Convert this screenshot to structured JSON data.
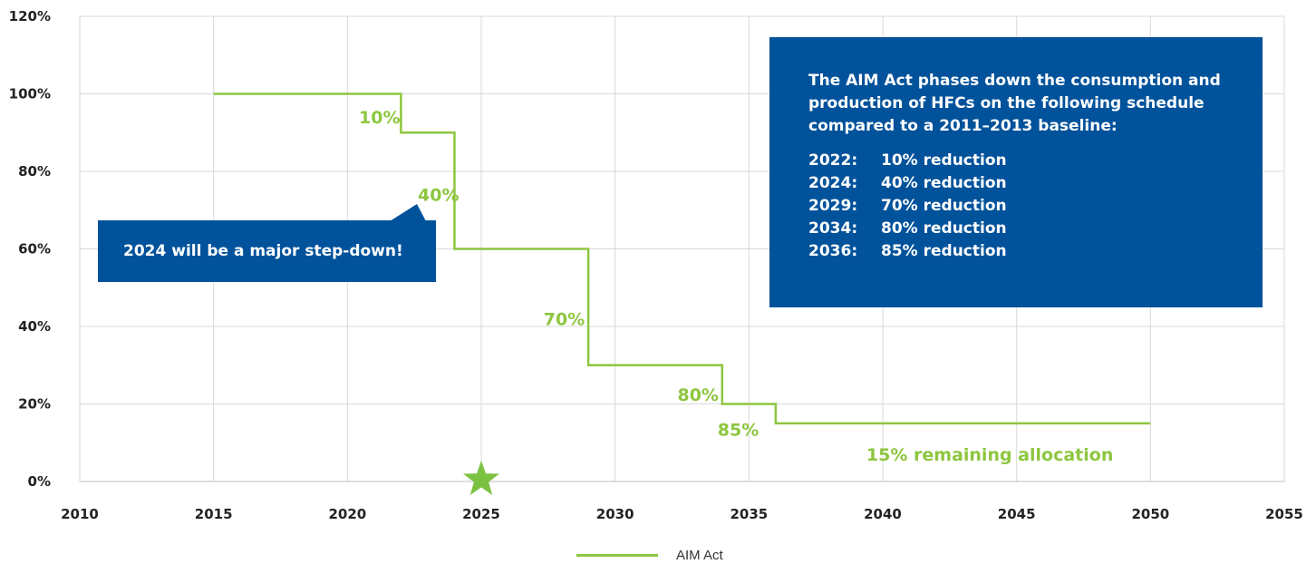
{
  "colors": {
    "series": "#8dc63f",
    "box": "#00529b",
    "grid": "#d9d9d9",
    "star": "#7cc242"
  },
  "info_box": {
    "intro": "The AIM Act phases down the consumption and production of HFCs on the following schedule compared to a 2011–2013 baseline:",
    "schedule": [
      {
        "year": "2022:",
        "text": "10% reduction"
      },
      {
        "year": "2024:",
        "text": "40% reduction"
      },
      {
        "year": "2029:",
        "text": "70% reduction"
      },
      {
        "year": "2034:",
        "text": "80% reduction"
      },
      {
        "year": "2036:",
        "text": "85% reduction"
      }
    ]
  },
  "callout": {
    "text": "2024 will be a major step-down!"
  },
  "chart_data": {
    "type": "line",
    "line_shape": "step",
    "title": "",
    "xlabel": "",
    "ylabel": "",
    "xlim": [
      2010,
      2055
    ],
    "ylim": [
      0,
      120
    ],
    "x_ticks": [
      2010,
      2015,
      2020,
      2025,
      2030,
      2035,
      2040,
      2045,
      2050,
      2055
    ],
    "y_ticks": [
      0,
      20,
      40,
      60,
      80,
      100,
      120
    ],
    "y_tick_labels": [
      "0%",
      "20%",
      "40%",
      "60%",
      "80%",
      "100%",
      "120%"
    ],
    "grid": true,
    "legend_position": "bottom",
    "series": [
      {
        "name": "AIM Act",
        "x": [
          2015,
          2022,
          2024,
          2029,
          2034,
          2036,
          2050
        ],
        "y": [
          100,
          90,
          60,
          30,
          20,
          15,
          15
        ]
      }
    ],
    "step_labels": [
      {
        "text": "10%",
        "x": 2021.2,
        "y": 94
      },
      {
        "text": "40%",
        "x": 2023.4,
        "y": 74
      },
      {
        "text": "70%",
        "x": 2028.1,
        "y": 42
      },
      {
        "text": "80%",
        "x": 2033.1,
        "y": 22.5
      },
      {
        "text": "85%",
        "x": 2034.6,
        "y": 13.5
      }
    ],
    "annotations": [
      {
        "text": "15% remaining allocation",
        "x": 2044,
        "y": 7
      }
    ],
    "marker": {
      "shape": "star",
      "x": 2025,
      "y": 0
    }
  }
}
